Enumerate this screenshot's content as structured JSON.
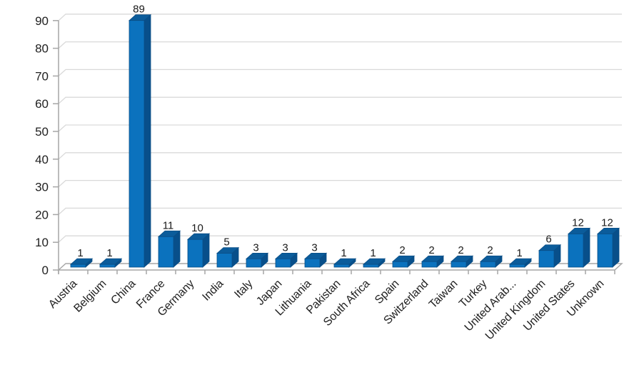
{
  "chart_data": {
    "type": "bar",
    "style": "3d-column",
    "title": "",
    "xlabel": "",
    "ylabel": "",
    "categories": [
      "Austria",
      "Belgium",
      "China",
      "France",
      "Germany",
      "India",
      "Italy",
      "Japan",
      "Lithuania",
      "Pakistan",
      "South Africa",
      "Spain",
      "Switzerland",
      "Taiwan",
      "Turkey",
      "United Arab...",
      "United Kingdom",
      "United States",
      "Unknown"
    ],
    "values": [
      1,
      1,
      89,
      11,
      10,
      5,
      3,
      3,
      3,
      1,
      1,
      2,
      2,
      2,
      2,
      1,
      6,
      12,
      12
    ],
    "data_labels_shown": true,
    "ylim": [
      0,
      90
    ],
    "ytick_step": 10,
    "yticks": [
      0,
      10,
      20,
      30,
      40,
      50,
      60,
      70,
      80,
      90
    ],
    "grid": true,
    "legend": "none",
    "x_label_rotation_deg": 45,
    "colors": {
      "bar_front": "#0B72BE",
      "bar_top": "#0B5C9B",
      "bar_side": "#084F8A",
      "bar_outline": "#0A4E86",
      "gridline": "#D9D9D9",
      "axis": "#A6A6A6",
      "label_text": "#1F1F1F",
      "background": "#FFFFFF"
    }
  }
}
